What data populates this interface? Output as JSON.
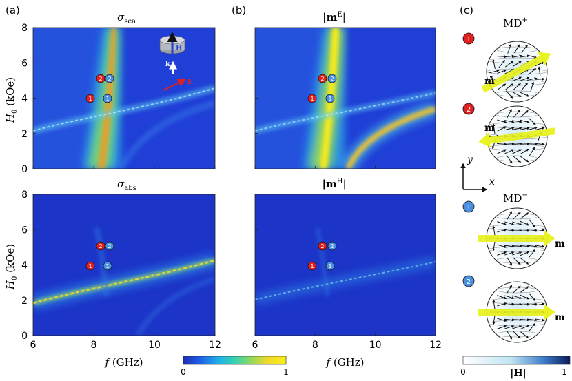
{
  "panel_labels": {
    "a": "(a)",
    "b": "(b)",
    "c": "(c)"
  },
  "panels": [
    {
      "id": "sca",
      "title_main": "σ",
      "title_sub": "sca"
    },
    {
      "id": "mE",
      "title_main": "|m",
      "title_sup": "E",
      "title_end": "|"
    },
    {
      "id": "abs",
      "title_main": "σ",
      "title_sub": "abs"
    },
    {
      "id": "mH",
      "title_main": "|m",
      "title_sup": "H",
      "title_end": "|"
    }
  ],
  "axes": {
    "ylabel_main": "H",
    "ylabel_sub": "0",
    "ylabel_unit": " (kOe)",
    "xlabel_main": "f",
    "xlabel_unit": " (GHz)",
    "x_ticks": [
      "6",
      "8",
      "10",
      "12"
    ],
    "y_ticks": [
      "0",
      "2",
      "4",
      "6",
      "8"
    ]
  },
  "markers": {
    "red_1": "1",
    "red_2": "2",
    "blue_1": "1",
    "blue_2": "2"
  },
  "inset": {
    "h_label": "H",
    "k_label": "k",
    "e_label": "E"
  },
  "colorbar_main": {
    "min": "0",
    "max": "1"
  },
  "colorbar_h": {
    "min": "0",
    "max": "1",
    "label": "|H|"
  },
  "mode_labels": {
    "md_plus": "MD",
    "md_plus_sup": "+",
    "md_minus": "MD",
    "md_minus_sup": "−",
    "m": "m",
    "axis_x": "x",
    "axis_y": "y"
  },
  "colors": {
    "map_bg": "#1f3fd6",
    "map_yellow": "#f4e21f",
    "map_orange": "#f39a25",
    "red_marker": "#e02020",
    "blue_marker": "#4a8fe0",
    "arrow_yellow": "#e8f21a"
  },
  "chart_data": [
    {
      "type": "heatmap",
      "title": "σsca",
      "xlabel": "f (GHz)",
      "ylabel": "H0 (kOe)",
      "xlim": [
        6,
        12
      ],
      "ylim": [
        0,
        8
      ],
      "colorbar": [
        0,
        1
      ]
    },
    {
      "type": "heatmap",
      "title": "|mE|",
      "xlabel": "f (GHz)",
      "ylabel": "H0 (kOe)",
      "xlim": [
        6,
        12
      ],
      "ylim": [
        0,
        8
      ],
      "colorbar": [
        0,
        1
      ]
    },
    {
      "type": "heatmap",
      "title": "σabs",
      "xlabel": "f (GHz)",
      "ylabel": "H0 (kOe)",
      "xlim": [
        6,
        12
      ],
      "ylim": [
        0,
        8
      ],
      "colorbar": [
        0,
        1
      ]
    },
    {
      "type": "heatmap",
      "title": "|mH|",
      "xlabel": "f (GHz)",
      "ylabel": "H0 (kOe)",
      "xlim": [
        6,
        12
      ],
      "ylim": [
        0,
        8
      ],
      "colorbar": [
        0,
        1
      ]
    }
  ]
}
